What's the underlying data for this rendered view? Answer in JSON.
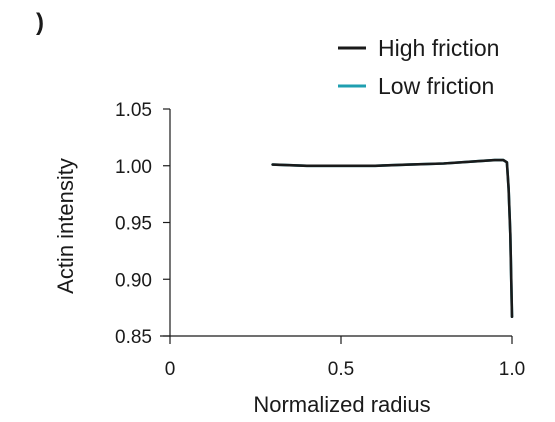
{
  "panel_label": ")",
  "colors": {
    "axis": "#1a1a1a",
    "high_friction": "#1a1a1a",
    "low_friction": "#1f9fb0"
  },
  "chart_data": {
    "type": "line",
    "title": "",
    "xlabel": "Normalized radius",
    "ylabel": "Actin intensity",
    "xlim": [
      0,
      1.0
    ],
    "ylim": [
      0.85,
      1.05
    ],
    "xticks": [
      0,
      0.5,
      1.0
    ],
    "xtick_labels": [
      "0",
      "0.5",
      "1.0"
    ],
    "yticks": [
      0.85,
      0.9,
      0.95,
      1.0,
      1.05
    ],
    "ytick_labels": [
      "0.85",
      "0.90",
      "0.95",
      "1.00",
      "1.05"
    ],
    "grid": false,
    "legend_position": "top-right",
    "series": [
      {
        "name": "High friction",
        "color": "#1a1a1a",
        "x": [
          0.3,
          0.4,
          0.5,
          0.6,
          0.7,
          0.8,
          0.9,
          0.95,
          0.975,
          0.985,
          0.99,
          0.995,
          1.0
        ],
        "y": [
          1.001,
          1.0,
          1.0,
          1.0,
          1.001,
          1.002,
          1.004,
          1.005,
          1.005,
          1.003,
          0.98,
          0.94,
          0.867
        ]
      },
      {
        "name": "Low friction",
        "color": "#1f9fb0",
        "x": [
          0.3,
          0.4,
          0.5,
          0.6,
          0.7,
          0.8,
          0.9,
          0.95,
          0.975,
          0.985,
          0.99,
          0.995,
          1.0
        ],
        "y": [
          1.001,
          1.0,
          1.0,
          1.0,
          1.001,
          1.002,
          1.004,
          1.005,
          1.005,
          1.003,
          0.98,
          0.94,
          0.867
        ]
      }
    ]
  }
}
